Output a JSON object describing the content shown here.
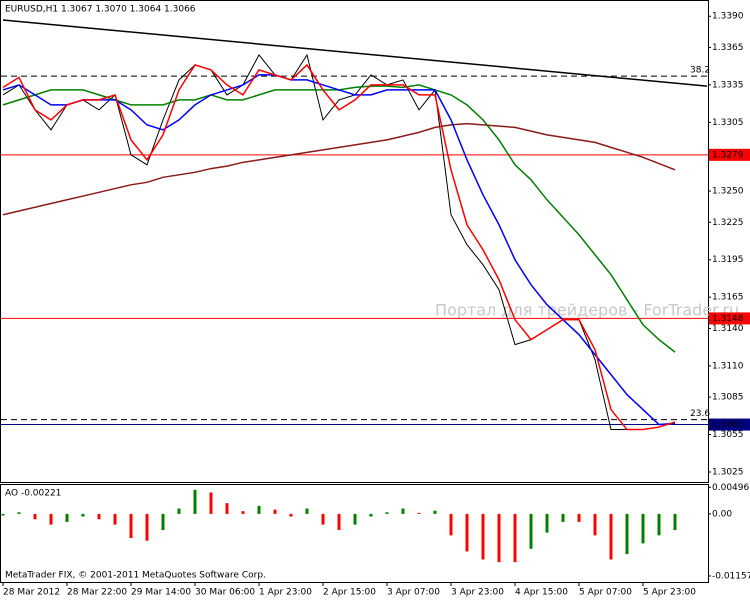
{
  "chart_data": {
    "type": "candlestick-line",
    "info": "EURUSD,H1  1.3067 1.3070 1.3064 1.3066",
    "watermark": "Портал для трейдеров - ForTrader.ru",
    "footer": "MetaTrader FIX, © 2001-2011 MetaQuotes Software Corp.",
    "categories": [
      "28 Mar 2012",
      null,
      null,
      null,
      "28 Mar 22:00",
      null,
      null,
      null,
      "29 Mar 14:00",
      null,
      null,
      null,
      "30 Mar 06:00",
      null,
      null,
      null,
      "1 Apr 23:00",
      null,
      null,
      null,
      "2 Apr 15:00",
      null,
      null,
      null,
      "3 Apr 07:00",
      null,
      null,
      null,
      "3 Apr 23:00",
      null,
      null,
      null,
      "4 Apr 15:00",
      null,
      null,
      null,
      "5 Apr 07:00",
      null,
      null,
      null,
      "5 Apr 23:00",
      null,
      null
    ],
    "ylim": [
      1.3017,
      1.3403
    ],
    "yticks": [
      {
        "value": 1.339,
        "label": "1.3390"
      },
      1.3365,
      1.3335,
      1.3305,
      {
        "value": 1.325,
        "label": "1.3250"
      },
      1.3225,
      1.3195,
      1.3165,
      {
        "value": 1.314,
        "label": "1.3140"
      },
      {
        "value": 1.311,
        "label": "1.3110"
      },
      1.3085,
      1.3055,
      1.3025
    ],
    "series": [
      {
        "color": "#000000",
        "values": [
          1.3327,
          1.3335,
          1.3315,
          1.3299,
          1.3319,
          1.3323,
          1.3315,
          1.3327,
          1.3279,
          1.3271,
          1.3307,
          1.3339,
          1.3351,
          1.3347,
          1.3327,
          1.3335,
          1.3359,
          1.3343,
          1.3339,
          1.3359,
          1.3307,
          1.3323,
          1.3327,
          1.3343,
          1.3335,
          1.3339,
          1.3315,
          1.3331,
          1.3231,
          1.3207,
          1.3191,
          1.3171,
          1.3127,
          1.3131,
          1.3139,
          1.3147,
          1.3147,
          1.3115,
          1.3059,
          1.3059,
          1.3059,
          1.3061,
          1.3065
        ]
      },
      {
        "color": "#8b1a1a",
        "values": [
          1.3231,
          1.3234,
          1.3237,
          1.324,
          1.3243,
          1.3246,
          1.3249,
          1.3252,
          1.3255,
          1.3257,
          1.3261,
          1.3263,
          1.3265,
          1.3268,
          1.327,
          1.3273,
          1.3275,
          1.3277,
          1.3279,
          1.3281,
          1.3283,
          1.3285,
          1.3287,
          1.3289,
          1.3291,
          1.3294,
          1.3297,
          1.3301,
          1.3303,
          1.3304,
          1.3303,
          1.3302,
          1.3301,
          1.3298,
          1.3295,
          1.3293,
          1.3291,
          1.3289,
          1.3285,
          1.3281,
          1.3277,
          1.3272,
          1.3267
        ]
      },
      {
        "color": "#008000",
        "values": [
          1.3319,
          1.3323,
          1.3327,
          1.3331,
          1.3331,
          1.3331,
          1.3327,
          1.3323,
          1.3319,
          1.3319,
          1.3319,
          1.3323,
          1.3323,
          1.3327,
          1.3323,
          1.3323,
          1.3327,
          1.3331,
          1.3331,
          1.3331,
          1.3331,
          1.3331,
          1.3333,
          1.3334,
          1.3334,
          1.3333,
          1.3335,
          1.3331,
          1.3327,
          1.3319,
          1.3307,
          1.3291,
          1.3271,
          1.3259,
          1.3243,
          1.3229,
          1.3215,
          1.3199,
          1.3183,
          1.3163,
          1.3143,
          1.3131,
          1.3121
        ]
      },
      {
        "color": "#0000ff",
        "values": [
          1.3331,
          1.3335,
          1.3327,
          1.3319,
          1.3319,
          1.3323,
          1.3323,
          1.3323,
          1.3315,
          1.3303,
          1.3299,
          1.3307,
          1.3319,
          1.3327,
          1.3331,
          1.3335,
          1.3343,
          1.3343,
          1.3339,
          1.3339,
          1.3335,
          1.3331,
          1.3327,
          1.3327,
          1.3331,
          1.3331,
          1.3331,
          1.3331,
          1.3307,
          1.3275,
          1.3247,
          1.3223,
          1.3195,
          1.3175,
          1.3159,
          1.3147,
          1.3135,
          1.3119,
          1.3103,
          1.3087,
          1.3075,
          1.3063,
          1.3064
        ]
      },
      {
        "color": "#ff0000",
        "values": [
          1.3333,
          1.3341,
          1.3315,
          1.3307,
          1.3319,
          1.3323,
          1.3323,
          1.3327,
          1.3291,
          1.3275,
          1.3295,
          1.3331,
          1.3351,
          1.3347,
          1.3335,
          1.3327,
          1.3347,
          1.3343,
          1.3339,
          1.3351,
          1.3331,
          1.3315,
          1.3323,
          1.3335,
          1.3335,
          1.3335,
          1.3327,
          1.3327,
          1.3267,
          1.3223,
          1.3203,
          1.3179,
          1.3147,
          1.3131,
          1.3139,
          1.3147,
          1.3147,
          1.3123,
          1.3075,
          1.3059,
          1.3059,
          1.3061,
          1.3065
        ]
      }
    ],
    "trendline": {
      "x": [
        0,
        44
      ],
      "values": [
        1.3387,
        1.3334
      ],
      "color": "#000000"
    },
    "fib_levels": [
      {
        "level": 38.2,
        "value": 1.3342
      },
      {
        "level": 23.6,
        "value": 1.3067
      }
    ],
    "hlines": [
      {
        "value": 1.3279,
        "color": "#ff0000"
      },
      {
        "value": 1.3148,
        "color": "#ff0000"
      },
      {
        "value": 1.3063,
        "color": "#000080"
      }
    ],
    "indicator": {
      "label": "AO -0.00221",
      "ylim": [
        -0.0127,
        0.0052
      ],
      "yticks": [
        0.00496,
        {
          "value": 0,
          "label": "0.00"
        },
        -0.01157
      ],
      "up_color": "#008000",
      "down_color": "#ff0000",
      "values": [
        -0.0003,
        0.0003,
        -0.001,
        -0.002,
        -0.0015,
        -0.0005,
        -0.001,
        -0.002,
        -0.0045,
        -0.005,
        -0.003,
        0.001,
        0.0045,
        0.004,
        0.002,
        0.0005,
        0.0015,
        0.0008,
        -0.0005,
        0.001,
        -0.002,
        -0.003,
        -0.002,
        -0.0005,
        0.0003,
        0.001,
        0.0002,
        0.0006,
        -0.004,
        -0.007,
        -0.0085,
        -0.009,
        -0.009,
        -0.0065,
        -0.0035,
        -0.0015,
        -0.0015,
        -0.004,
        -0.0085,
        -0.0075,
        -0.0055,
        -0.004,
        -0.003
      ]
    }
  }
}
